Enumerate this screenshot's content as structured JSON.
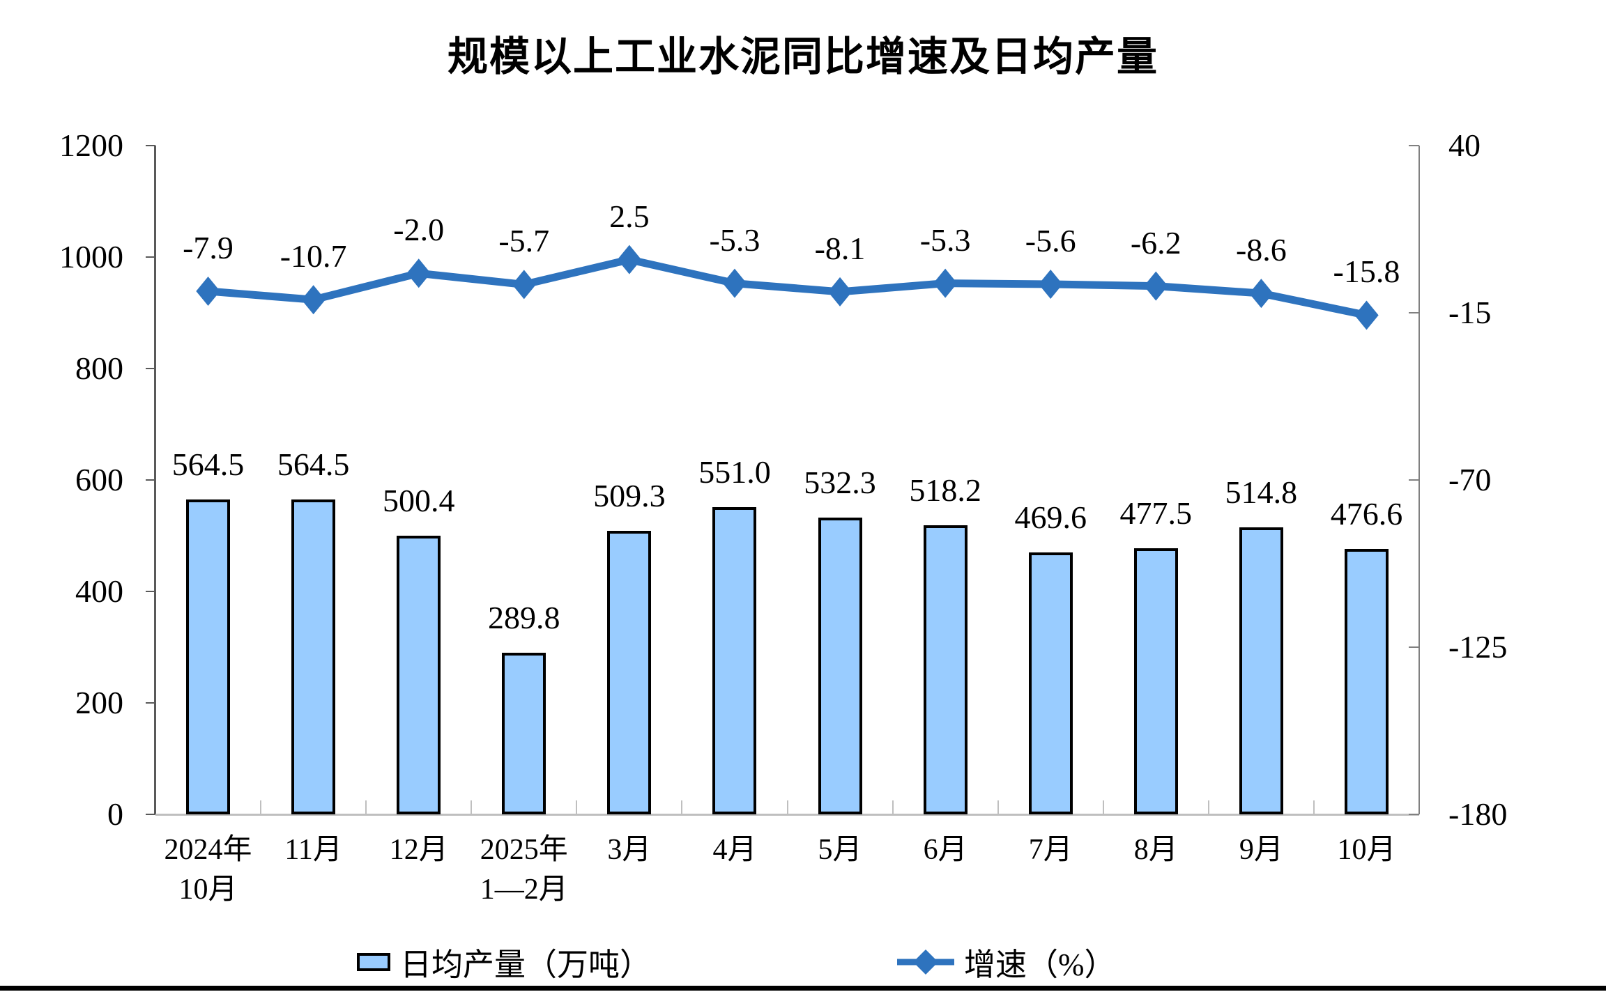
{
  "title": "规模以上工业水泥同比增速及日均产量",
  "colors": {
    "bar_fill": "#99CCFF",
    "bar_border": "#000000",
    "line": "#2E73BE",
    "axis_side": "#595959",
    "axis_right": "#808080",
    "axis_bottom": "#BFBFBF",
    "text": "#000000"
  },
  "legend": [
    {
      "label": "日均产量（万吨）",
      "type": "bar"
    },
    {
      "label": "增速（%）",
      "type": "line"
    }
  ],
  "chart_data": {
    "type": "bar+line combo",
    "title": "规模以上工业水泥同比增速及日均产量",
    "categories": [
      "2024年\n10月",
      "11月",
      "12月",
      "2025年\n1—2月",
      "3月",
      "4月",
      "5月",
      "6月",
      "7月",
      "8月",
      "9月",
      "10月"
    ],
    "series": [
      {
        "name": "日均产量（万吨）",
        "type": "bar",
        "axis": "left",
        "values": [
          564.5,
          564.5,
          500.4,
          289.8,
          509.3,
          551.0,
          532.3,
          518.2,
          469.6,
          477.5,
          514.8,
          476.6
        ]
      },
      {
        "name": "增速（%）",
        "type": "line",
        "axis": "right",
        "values": [
          -7.9,
          -10.7,
          -2.0,
          -5.7,
          2.5,
          -5.3,
          -8.1,
          -5.3,
          -5.6,
          -6.2,
          -8.6,
          -15.8
        ]
      }
    ],
    "left_axis": {
      "min": 0,
      "max": 1200,
      "ticks": [
        1200,
        1000,
        800,
        600,
        400,
        200,
        0
      ]
    },
    "right_axis": {
      "min": -180,
      "max": 40,
      "ticks": [
        40,
        -15,
        -70,
        -125,
        -180
      ]
    },
    "grid": "off",
    "legend_position": "bottom",
    "data_labels": "on"
  }
}
